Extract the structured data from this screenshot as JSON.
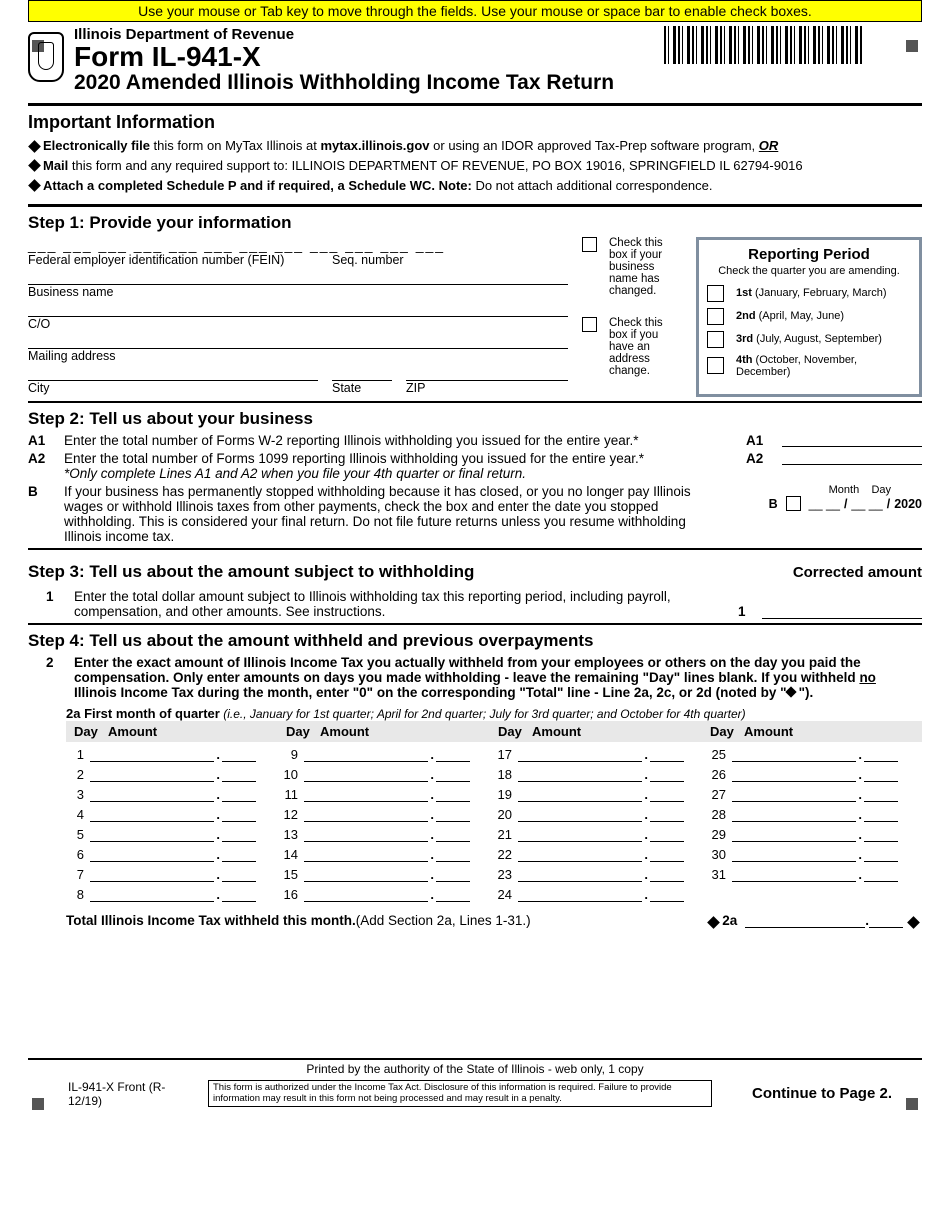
{
  "instruction_bar": "Use your mouse or Tab key to move through the fields. Use your mouse or space bar to enable check boxes.",
  "header": {
    "department": "Illinois Department of Revenue",
    "form_code": "Form IL-941-X",
    "form_title": "2020 Amended Illinois Withholding Income Tax Return"
  },
  "important": {
    "title": "Important Information",
    "bullets": [
      {
        "prefix": "Electronically file",
        "body": " this form on MyTax Illinois at ",
        "bold2": "mytax.illinois.gov",
        "body2": " or using an IDOR approved Tax-Prep software program, ",
        "trail": "OR"
      },
      {
        "prefix": "Mail",
        "body": " this form and any required support to: ILLINOIS DEPARTMENT OF REVENUE, PO BOX 19016, SPRINGFIELD IL  62794-9016"
      },
      {
        "prefix": "Attach a completed Schedule P and if required, a Schedule WC. Note:",
        "body": " Do not attach additional correspondence."
      }
    ]
  },
  "step1": {
    "title": "Step 1:  Provide your information",
    "fein_dashes": "___  ___       ___  ___  ___  ___  ___  ___  ___          ___  ___  ___",
    "fein_label": "Federal employer identification number (FEIN)",
    "seq_label": "Seq. number",
    "business_name": "Business name",
    "co": "C/O",
    "mailing": "Mailing address",
    "city": "City",
    "state": "State",
    "zip": "ZIP",
    "check_name": "Check this box if your business name has changed.",
    "check_addr": "Check this box if you have an address change.",
    "report": {
      "title": "Reporting Period",
      "sub": "Check the quarter you are amending.",
      "q1": {
        "b": "1st",
        "t": " (January, February, March)"
      },
      "q2": {
        "b": "2nd",
        "t": " (April, May, June)"
      },
      "q3": {
        "b": "3rd",
        "t": " (July, August, September)"
      },
      "q4": {
        "b": "4th",
        "t": " (October, November, December)"
      }
    }
  },
  "step2": {
    "title": "Step 2:  Tell us about your business",
    "a1": "Enter the total number of Forms W-2 reporting Illinois withholding you issued for the entire year.*",
    "a2": "Enter the total number of Forms 1099 reporting Illinois withholding you issued for the entire year.*",
    "note": "*Only complete Lines A1 and A2 when you file your 4th quarter or final return.",
    "b": "If your business has permanently stopped withholding because it has closed, or you no longer pay Illinois wages or withhold Illinois taxes from other payments, check the box and enter the date you stopped withholding. This is considered your final return. Do not file future returns unless you resume withholding Illinois income tax.",
    "month": "Month",
    "day": "Day",
    "year": "2020",
    "btag": "B",
    "a1tag": "A1",
    "a2tag": "A2"
  },
  "step3": {
    "title": "Step 3:  Tell us about the amount subject to withholding",
    "corrected": "Corrected amount",
    "l1": "Enter the total dollar amount subject to Illinois withholding tax this reporting period, including payroll, compensation, and other amounts. See instructions.",
    "l1tag": "1"
  },
  "step4": {
    "title": "Step 4: Tell us about the amount withheld and previous overpayments",
    "l2label": "2",
    "l2": "Enter the exact amount of Illinois Income Tax you actually withheld from your employees or others on the day you paid the compensation. Only enter amounts on days you made withholding - leave the remaining \"Day\" lines blank. If you withheld ",
    "l2_no": "no",
    "l2b": " Illinois Income Tax during the month, enter \"0\" on the corresponding \"Total\" line - Line 2a, 2c, or 2d (noted by \"",
    "l2c": "\").",
    "firstmonth_b": "2a  First month of quarter",
    "firstmonth_i": " (i.e., January for 1st quarter; April for 2nd quarter; July for 3rd quarter; and October for 4th quarter)",
    "hdr_day": "Day",
    "hdr_amt": "Amount",
    "days": {
      "c1": [
        "1",
        "2",
        "3",
        "4",
        "5",
        "6",
        "7",
        "8"
      ],
      "c2": [
        "9",
        "10",
        "11",
        "12",
        "13",
        "14",
        "15",
        "16"
      ],
      "c3": [
        "17",
        "18",
        "19",
        "20",
        "21",
        "22",
        "23",
        "24"
      ],
      "c4": [
        "25",
        "26",
        "27",
        "28",
        "29",
        "30",
        "31"
      ]
    },
    "total_label": "Total Illinois Income Tax withheld this month.",
    "total_paren": " (Add Section 2a, Lines 1-31.)",
    "total_tag": "2a"
  },
  "footer": {
    "printed": "Printed by the authority of the State of Illinois - web only, 1 copy",
    "id": "IL-941-X Front (R-12/19)",
    "note": "This form is authorized under the Income Tax Act. Disclosure of this information is required. Failure to provide information may result in this form not being processed and may result in a penalty.",
    "continue": "Continue to Page 2."
  }
}
